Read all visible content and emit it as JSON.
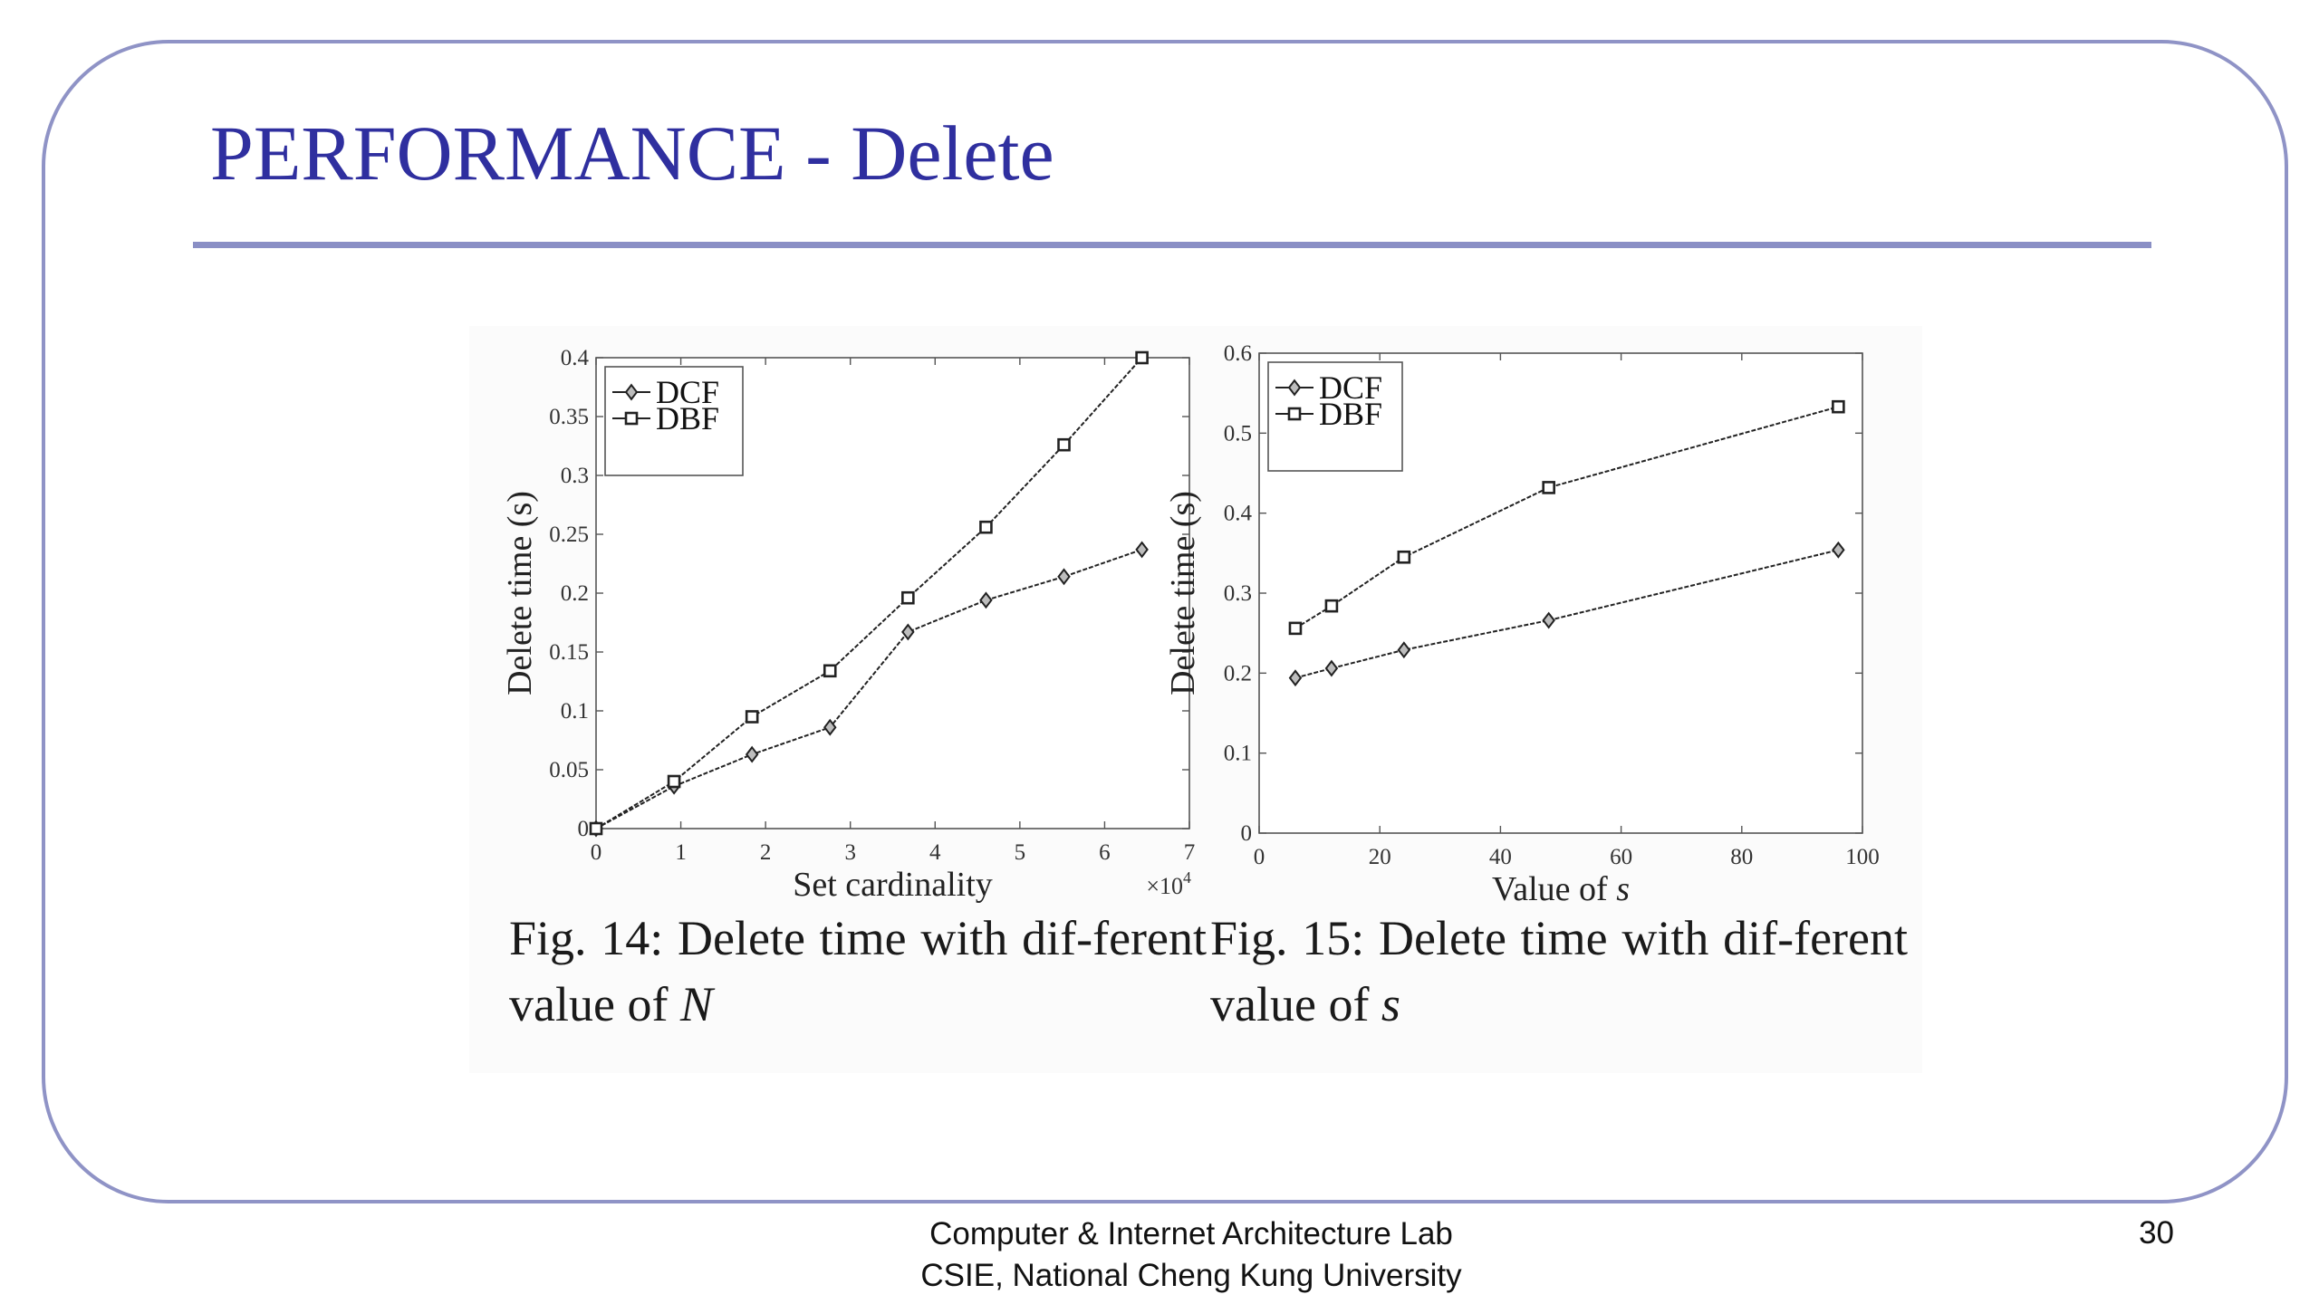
{
  "slide": {
    "title": "PERFORMANCE - Delete",
    "page_number": "30",
    "footer_line1": "Computer & Internet Architecture Lab",
    "footer_line2": "CSIE, National Cheng Kung University"
  },
  "colors": {
    "title": "#2f2f9f",
    "frame_border": "#8f93c6",
    "title_rule": "#8a8fc5",
    "series": "#222222"
  },
  "captions": [
    {
      "prefix": "Fig. 14: Delete time with dif-ferent value of ",
      "variable": "N"
    },
    {
      "prefix": "Fig. 15: Delete time with dif-ferent value of ",
      "variable": "s"
    }
  ],
  "chart_data": [
    {
      "type": "line",
      "title": "",
      "xlabel": "Set cardinality",
      "x_multiplier": "×10",
      "x_multiplier_exponent": "4",
      "ylabel": "Delete time (s)",
      "xlim": [
        0,
        7
      ],
      "ylim": [
        0,
        0.4
      ],
      "xticks": [
        0,
        1,
        2,
        3,
        4,
        5,
        6,
        7
      ],
      "xtick_labels": [
        "0",
        "1",
        "2",
        "3",
        "4",
        "5",
        "6",
        "7"
      ],
      "yticks": [
        0,
        0.05,
        0.1,
        0.15,
        0.2,
        0.25,
        0.3,
        0.35,
        0.4
      ],
      "ytick_labels": [
        "0",
        "0.05",
        "0.1",
        "0.15",
        "0.2",
        "0.25",
        "0.3",
        "0.35",
        "0.4"
      ],
      "grid": false,
      "legend_position": "top-left",
      "series": [
        {
          "name": "DCF",
          "marker": "diamond",
          "x": [
            0,
            0.92,
            1.84,
            2.76,
            3.68,
            4.6,
            5.52,
            6.44
          ],
          "y": [
            0,
            0.036,
            0.063,
            0.086,
            0.167,
            0.194,
            0.214,
            0.237
          ]
        },
        {
          "name": "DBF",
          "marker": "square",
          "x": [
            0,
            0.92,
            1.84,
            2.76,
            3.68,
            4.6,
            5.52,
            6.44
          ],
          "y": [
            0,
            0.04,
            0.095,
            0.134,
            0.196,
            0.256,
            0.326,
            0.4
          ]
        }
      ]
    },
    {
      "type": "line",
      "title": "",
      "xlabel": "Value of ",
      "xlabel_variable": "s",
      "ylabel": "Delete time (s)",
      "xlim": [
        0,
        100
      ],
      "ylim": [
        0,
        0.6
      ],
      "xticks": [
        0,
        20,
        40,
        60,
        80,
        100
      ],
      "xtick_labels": [
        "0",
        "20",
        "40",
        "60",
        "80",
        "100"
      ],
      "yticks": [
        0,
        0.1,
        0.2,
        0.3,
        0.4,
        0.5,
        0.6
      ],
      "ytick_labels": [
        "0",
        "0.1",
        "0.2",
        "0.3",
        "0.4",
        "0.5",
        "0.6"
      ],
      "grid": false,
      "legend_position": "top-left",
      "series": [
        {
          "name": "DCF",
          "marker": "diamond",
          "x": [
            6,
            12,
            24,
            48,
            96
          ],
          "y": [
            0.194,
            0.206,
            0.229,
            0.266,
            0.354
          ]
        },
        {
          "name": "DBF",
          "marker": "square",
          "x": [
            6,
            12,
            24,
            48,
            96
          ],
          "y": [
            0.256,
            0.284,
            0.345,
            0.432,
            0.533
          ]
        }
      ]
    }
  ]
}
